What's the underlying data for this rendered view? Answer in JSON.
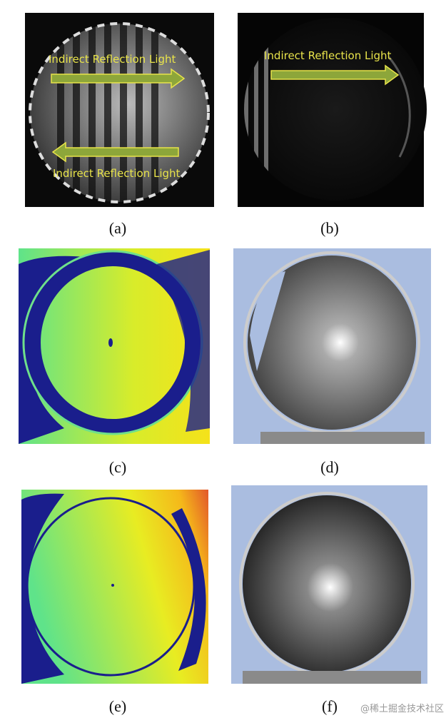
{
  "panels": [
    {
      "label": "(a)",
      "annotations": [
        "Indirect Reflection Light",
        "Indirect Reflection Light"
      ]
    },
    {
      "label": "(b)",
      "annotations": [
        "Indirect Reflection Light"
      ]
    },
    {
      "label": "(c)"
    },
    {
      "label": "(d)"
    },
    {
      "label": "(e)"
    },
    {
      "label": "(f)"
    }
  ],
  "watermark": "@稀土掘金技术社区"
}
